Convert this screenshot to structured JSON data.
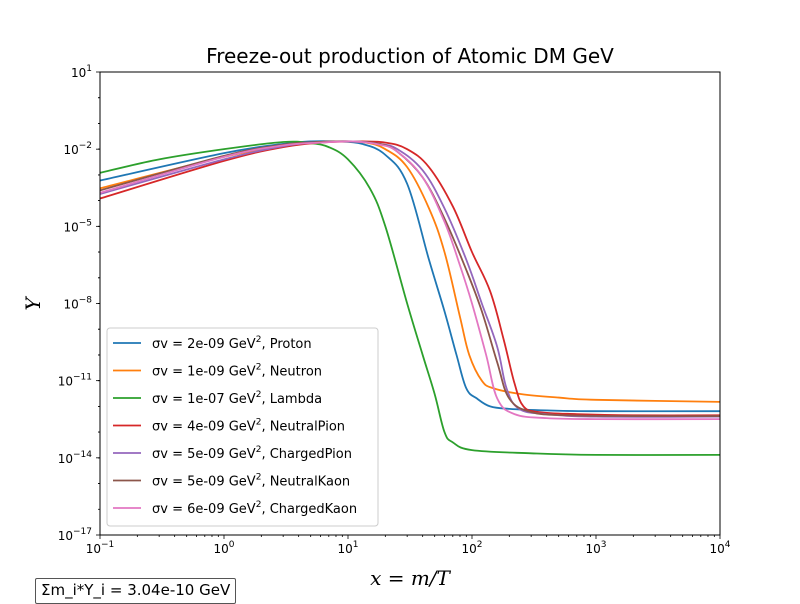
{
  "chart_data": {
    "type": "line",
    "title": "Freeze-out production of Atomic DM GeV",
    "xlabel": "x = m/T",
    "ylabel": "Y",
    "xscale": "log",
    "yscale": "log",
    "xlim": [
      0.1,
      10000
    ],
    "ylim": [
      1e-17,
      10
    ],
    "x_ticks": [
      {
        "value": 0.1,
        "base": "10",
        "exp": "−1"
      },
      {
        "value": 1,
        "base": "10",
        "exp": "0"
      },
      {
        "value": 10,
        "base": "10",
        "exp": "1"
      },
      {
        "value": 100,
        "base": "10",
        "exp": "2"
      },
      {
        "value": 1000,
        "base": "10",
        "exp": "3"
      },
      {
        "value": 10000,
        "base": "10",
        "exp": "4"
      }
    ],
    "y_ticks": [
      {
        "value": 1e-17,
        "base": "10",
        "exp": "−17"
      },
      {
        "value": 1e-14,
        "base": "10",
        "exp": "−14"
      },
      {
        "value": 1e-11,
        "base": "10",
        "exp": "−11"
      },
      {
        "value": 1e-08,
        "base": "10",
        "exp": "−8"
      },
      {
        "value": 1e-05,
        "base": "10",
        "exp": "−5"
      },
      {
        "value": 0.01,
        "base": "10",
        "exp": "−2"
      },
      {
        "value": 10,
        "base": "10",
        "exp": "1"
      }
    ],
    "legend_position": "lower-left",
    "grid": false,
    "series": [
      {
        "name": "σv = 2e-09 GeV², Proton",
        "label_main": "σv = 2e-09 GeV",
        "label_sup": "2",
        "label_tail": ", Proton",
        "color": "#1f77b4",
        "x": [
          0.1,
          1,
          3,
          5,
          8,
          13,
          20,
          30,
          45,
          60,
          75,
          90,
          110,
          140,
          200,
          400,
          1000,
          10000
        ],
        "y": [
          0.0006,
          0.007,
          0.016,
          0.02,
          0.02,
          0.016,
          0.006,
          0.00045,
          5e-07,
          5e-09,
          1e-10,
          5e-12,
          2e-12,
          1e-12,
          8e-13,
          7e-13,
          6.5e-13,
          6.5e-13
        ]
      },
      {
        "name": "σv = 1e-09 GeV², Neutron",
        "label_main": "σv = 1e-09 GeV",
        "label_sup": "2",
        "label_tail": ", Neutron",
        "color": "#ff7f0e",
        "x": [
          0.1,
          1,
          3,
          5,
          9,
          14,
          20,
          30,
          45,
          60,
          80,
          95,
          120,
          150,
          250,
          500,
          1000,
          10000
        ],
        "y": [
          0.0003,
          0.005,
          0.013,
          0.018,
          0.02,
          0.018,
          0.01,
          0.002,
          5e-05,
          1e-06,
          3e-09,
          1e-10,
          1e-11,
          5e-12,
          3e-12,
          2.2e-12,
          1.8e-12,
          1.5e-12
        ]
      },
      {
        "name": "σv = 1e-07 GeV², Lambda",
        "label_main": "σv = 1e-07 GeV",
        "label_sup": "2",
        "label_tail": ", Lambda",
        "color": "#2ca02c",
        "x": [
          0.1,
          0.3,
          1,
          3,
          5,
          7,
          10,
          15,
          20,
          30,
          40,
          50,
          60,
          70,
          100,
          300,
          1000,
          10000
        ],
        "y": [
          0.0012,
          0.004,
          0.01,
          0.019,
          0.017,
          0.012,
          0.004,
          0.0003,
          1e-05,
          1e-08,
          1e-10,
          3e-12,
          1e-13,
          4e-14,
          2e-14,
          1.5e-14,
          1.3e-14,
          1.3e-14
        ]
      },
      {
        "name": "σv = 4e-09 GeV², NeutralPion",
        "label_main": "σv = 4e-09 GeV",
        "label_sup": "2",
        "label_tail": ", NeutralPion",
        "color": "#d62728",
        "x": [
          0.1,
          1,
          3,
          6,
          12,
          20,
          30,
          45,
          70,
          100,
          140,
          180,
          220,
          260,
          350,
          700,
          2000,
          10000
        ],
        "y": [
          0.00012,
          0.0035,
          0.012,
          0.018,
          0.02,
          0.018,
          0.01,
          0.002,
          6e-05,
          1e-06,
          3e-08,
          4e-10,
          8e-12,
          1e-12,
          6e-13,
          5e-13,
          4.5e-13,
          4.5e-13
        ]
      },
      {
        "name": "σv = 5e-09 GeV², ChargedPion",
        "label_main": "σv = 5e-09 GeV",
        "label_sup": "2",
        "label_tail": ", ChargedPion",
        "color": "#9467bd",
        "x": [
          0.1,
          1,
          3,
          6,
          11,
          18,
          25,
          40,
          60,
          90,
          120,
          160,
          190,
          240,
          400,
          1000,
          10000
        ],
        "y": [
          0.00018,
          0.004,
          0.013,
          0.019,
          0.02,
          0.016,
          0.01,
          0.0015,
          5e-05,
          5e-07,
          1e-08,
          2e-10,
          5e-12,
          8e-13,
          5e-13,
          4e-13,
          4e-13
        ]
      },
      {
        "name": "σv = 5e-09 GeV², NeutralKaon",
        "label_main": "σv = 5e-09 GeV",
        "label_sup": "2",
        "label_tail": ", NeutralKaon",
        "color": "#8c564b",
        "x": [
          0.1,
          1,
          3,
          6,
          11,
          18,
          25,
          40,
          60,
          90,
          120,
          160,
          200,
          300,
          600,
          2000,
          10000
        ],
        "y": [
          0.00025,
          0.0055,
          0.015,
          0.019,
          0.02,
          0.016,
          0.008,
          0.0008,
          2e-05,
          2e-07,
          5e-09,
          5e-11,
          2e-12,
          6e-13,
          4.5e-13,
          4.2e-13,
          4.2e-13
        ]
      },
      {
        "name": "σv = 6e-09 GeV², ChargedKaon",
        "label_main": "σv = 6e-09 GeV",
        "label_sup": "2",
        "label_tail": ", ChargedKaon",
        "color": "#e377c2",
        "x": [
          0.1,
          1,
          3,
          6,
          11,
          18,
          25,
          40,
          60,
          80,
          100,
          130,
          160,
          220,
          400,
          1000,
          10000
        ],
        "y": [
          0.0002,
          0.005,
          0.014,
          0.018,
          0.02,
          0.015,
          0.008,
          0.0008,
          1.5e-05,
          3e-07,
          1e-08,
          1e-10,
          2e-12,
          5e-13,
          3.5e-13,
          3.2e-13,
          3.2e-13
        ]
      }
    ]
  },
  "sum_box": {
    "text": "Σm_i*Y_i = 3.04e-10 GeV"
  }
}
